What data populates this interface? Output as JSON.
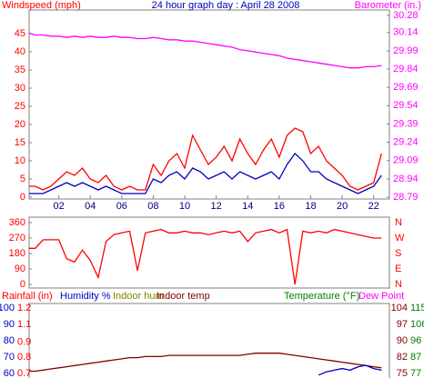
{
  "chart_data": [
    {
      "type": "line",
      "title": "24 hour graph day : April 28 2008",
      "y_label": "Windspeed (mph)",
      "y2_label": "Barometer (in.)",
      "x": [
        0,
        0.5,
        1,
        1.5,
        2,
        2.5,
        3,
        3.5,
        4,
        4.5,
        5,
        5.5,
        6,
        6.5,
        7,
        7.5,
        8,
        8.5,
        9,
        9.5,
        10,
        10.5,
        11,
        11.5,
        12,
        12.5,
        13,
        13.5,
        14,
        14.5,
        15,
        15.5,
        16,
        16.5,
        17,
        17.5,
        18,
        18.5,
        19,
        19.5,
        20,
        20.5,
        21,
        21.5,
        22,
        22.5
      ],
      "xlim": [
        0,
        23
      ],
      "xticks": [
        {
          "value": 2,
          "label": "02"
        },
        {
          "value": 4,
          "label": "04"
        },
        {
          "value": 6,
          "label": "06"
        },
        {
          "value": 8,
          "label": "08"
        },
        {
          "value": 10,
          "label": "10"
        },
        {
          "value": 12,
          "label": "12"
        },
        {
          "value": 14,
          "label": "14"
        },
        {
          "value": 16,
          "label": "16"
        },
        {
          "value": 18,
          "label": "18"
        },
        {
          "value": 20,
          "label": "20"
        },
        {
          "value": 22,
          "label": "22"
        }
      ],
      "ylim": [
        0,
        50
      ],
      "yticks": [
        0,
        5,
        10,
        15,
        20,
        25,
        30,
        35,
        40,
        45
      ],
      "y2lim": [
        28.79,
        30.28
      ],
      "y2ticks": [
        28.79,
        28.94,
        29.09,
        29.24,
        29.39,
        29.54,
        29.69,
        29.84,
        29.99,
        30.14,
        30.28
      ],
      "series": [
        {
          "color": "#ff0000",
          "values": [
            3,
            3,
            2,
            3,
            5,
            7,
            6,
            8,
            5,
            4,
            6,
            3,
            2,
            3,
            2,
            2,
            9,
            6,
            10,
            12,
            8,
            17,
            13,
            9,
            11,
            14,
            10,
            16,
            12,
            9,
            13,
            16,
            11,
            17,
            19,
            18,
            12,
            14,
            10,
            8,
            6,
            3,
            2,
            3,
            4,
            12
          ]
        },
        {
          "color": "#0000c0",
          "values": [
            1,
            1,
            1,
            2,
            3,
            4,
            3,
            4,
            3,
            2,
            3,
            2,
            1,
            1,
            1,
            1,
            5,
            4,
            6,
            7,
            5,
            8,
            7,
            5,
            6,
            7,
            5,
            7,
            6,
            5,
            6,
            7,
            5,
            9,
            12,
            10,
            7,
            7,
            5,
            4,
            3,
            2,
            1,
            2,
            3,
            6
          ]
        },
        {
          "color": "#ff00ff",
          "axis": "y2",
          "values": [
            30.14,
            30.12,
            30.12,
            30.11,
            30.11,
            30.1,
            30.11,
            30.1,
            30.11,
            30.1,
            30.1,
            30.11,
            30.1,
            30.1,
            30.09,
            30.09,
            30.1,
            30.09,
            30.08,
            30.08,
            30.07,
            30.07,
            30.06,
            30.05,
            30.04,
            30.03,
            30.02,
            30.0,
            29.99,
            29.98,
            29.97,
            29.96,
            29.95,
            29.93,
            29.92,
            29.91,
            29.9,
            29.89,
            29.88,
            29.87,
            29.86,
            29.85,
            29.85,
            29.86,
            29.86,
            29.87
          ]
        }
      ]
    },
    {
      "type": "line",
      "x": [
        0,
        0.5,
        1,
        1.5,
        2,
        2.5,
        3,
        3.5,
        4,
        4.5,
        5,
        5.5,
        6,
        6.5,
        7,
        7.5,
        8,
        8.5,
        9,
        9.5,
        10,
        10.5,
        11,
        11.5,
        12,
        12.5,
        13,
        13.5,
        14,
        14.5,
        15,
        15.5,
        16,
        16.5,
        17,
        17.5,
        18,
        18.5,
        19,
        19.5,
        20,
        20.5,
        21,
        21.5,
        22,
        22.5
      ],
      "xlim": [
        0,
        23
      ],
      "ylim": [
        0,
        360
      ],
      "yticks": [
        0,
        90,
        180,
        270,
        360
      ],
      "y2lim": [
        0,
        360
      ],
      "y2ticks": [
        {
          "value": 0,
          "label": "N"
        },
        {
          "value": 90,
          "label": "E"
        },
        {
          "value": 180,
          "label": "S"
        },
        {
          "value": 270,
          "label": "W"
        },
        {
          "value": 360,
          "label": "N"
        }
      ],
      "series": [
        {
          "color": "#ff0000",
          "values": [
            210,
            210,
            260,
            260,
            260,
            150,
            130,
            200,
            140,
            40,
            250,
            290,
            300,
            310,
            80,
            300,
            310,
            320,
            300,
            300,
            310,
            300,
            300,
            290,
            300,
            310,
            300,
            310,
            250,
            300,
            310,
            320,
            300,
            320,
            0,
            310,
            300,
            310,
            300,
            320,
            310,
            300,
            290,
            280,
            270,
            270
          ]
        }
      ]
    },
    {
      "type": "line",
      "x": [
        0,
        0.5,
        1,
        1.5,
        2,
        2.5,
        3,
        3.5,
        4,
        4.5,
        5,
        5.5,
        6,
        6.5,
        7,
        7.5,
        8,
        8.5,
        9,
        9.5,
        10,
        10.5,
        11,
        11.5,
        12,
        12.5,
        13,
        13.5,
        14,
        14.5,
        15,
        15.5,
        16,
        16.5,
        17,
        17.5,
        18,
        18.5,
        19,
        19.5,
        20,
        20.5,
        21,
        21.5,
        22,
        22.5
      ],
      "xlim": [
        0,
        23
      ],
      "labels": [
        {
          "text": "Rainfall (in)",
          "color": "#ff0000"
        },
        {
          "text": "Humidity %",
          "color": "#0000c0"
        },
        {
          "text": "Indoor hum",
          "color": "#808000"
        },
        {
          "text": "Indoor temp",
          "color": "#800000"
        },
        {
          "text": "Temperature (°F)",
          "color": "#008000"
        },
        {
          "text": "Dew Point",
          "color": "#ff00ff"
        }
      ],
      "axes": [
        {
          "color": "#0000c0",
          "lim": [
            60,
            100
          ],
          "ticks": [
            60,
            70,
            80,
            90,
            100
          ]
        },
        {
          "color": "#ff0000",
          "lim": [
            0.7,
            1.2
          ],
          "ticks": [
            0.7,
            {
              "value": 0.825,
              "label": "0.8"
            },
            {
              "value": 0.94,
              "label": "0.9"
            },
            {
              "value": 1.075,
              "label": "1.1"
            },
            1.2
          ]
        },
        {
          "color": "#800000",
          "lim": [
            75,
            104
          ],
          "ticks": [
            75,
            {
              "value": 82.25,
              "label": "82"
            },
            {
              "value": 89.5,
              "label": "90"
            },
            {
              "value": 96.75,
              "label": "97"
            },
            104
          ]
        },
        {
          "color": "#008000",
          "lim": [
            77,
            115
          ],
          "ticks": [
            77,
            {
              "value": 86.5,
              "label": "87"
            },
            96,
            {
              "value": 105.5,
              "label": "106"
            },
            115
          ]
        }
      ],
      "series": [
        {
          "color": "#800000",
          "axis": 2,
          "values": [
            76,
            76,
            76.5,
            77,
            77.5,
            78,
            78.5,
            79,
            79.5,
            80,
            80.5,
            81,
            81.5,
            82,
            82,
            82.5,
            82.5,
            82.5,
            83,
            83,
            83,
            83,
            83,
            83,
            83,
            83,
            83,
            83,
            83.5,
            84,
            84,
            84,
            84,
            83.5,
            83,
            82.5,
            82,
            81.5,
            81,
            80.5,
            80,
            79.5,
            79,
            78.5,
            78,
            77.5
          ]
        },
        {
          "color": "#0000c0",
          "axis": 0,
          "values": [
            null,
            null,
            null,
            null,
            null,
            null,
            null,
            null,
            null,
            null,
            null,
            null,
            null,
            null,
            null,
            null,
            null,
            null,
            null,
            null,
            null,
            null,
            null,
            null,
            null,
            null,
            null,
            null,
            null,
            null,
            null,
            null,
            null,
            null,
            null,
            null,
            null,
            59,
            61,
            62,
            63,
            62,
            64,
            65,
            63,
            62
          ]
        }
      ]
    }
  ]
}
